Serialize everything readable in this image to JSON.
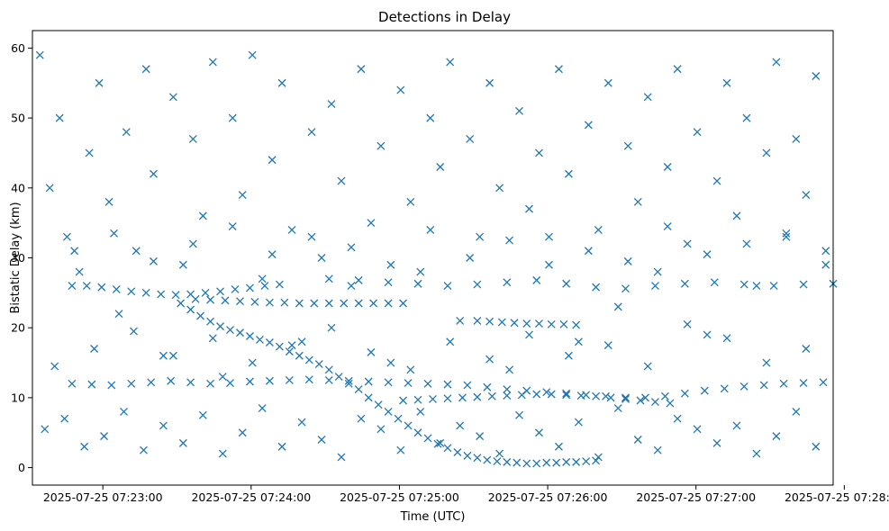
{
  "chart_data": {
    "type": "scatter",
    "title": "Detections in Delay",
    "xlabel": "Time (UTC)",
    "ylabel": "Bistatic Delay (km)",
    "x_unit": "seconds after 2025-07-25 07:22:30 UTC",
    "xlim": [
      0,
      324
    ],
    "ylim": [
      -2.5,
      62.5
    ],
    "x_ticks": [
      {
        "value": 28.5,
        "label": "2025-07-25 07:23:00"
      },
      {
        "value": 88.5,
        "label": "2025-07-25 07:24:00"
      },
      {
        "value": 148.5,
        "label": "2025-07-25 07:25:00"
      },
      {
        "value": 208.5,
        "label": "2025-07-25 07:26:00"
      },
      {
        "value": 268.5,
        "label": "2025-07-25 07:27:00"
      },
      {
        "value": 328.5,
        "label": "2025-07-25 07:28:00"
      }
    ],
    "y_ticks": [
      {
        "value": 0,
        "label": "0"
      },
      {
        "value": 10,
        "label": "10"
      },
      {
        "value": 20,
        "label": "20"
      },
      {
        "value": 30,
        "label": "30"
      },
      {
        "value": 40,
        "label": "40"
      },
      {
        "value": 50,
        "label": "50"
      },
      {
        "value": 60,
        "label": "60"
      }
    ],
    "grid": false,
    "color": "#1f77b4",
    "marker": "x",
    "series": [
      {
        "name": "track: descending curve",
        "x": [
          60,
          64,
          68,
          72,
          76,
          80,
          84,
          88,
          92,
          96,
          100,
          104,
          108,
          112,
          116,
          120,
          124,
          128,
          132,
          136,
          140,
          144,
          148,
          152,
          156,
          160,
          164,
          168,
          172,
          176,
          180,
          184,
          188,
          192,
          196,
          200,
          204,
          208,
          212,
          216,
          220,
          224,
          228
        ],
        "y": [
          23.5,
          22.6,
          21.7,
          20.9,
          20.2,
          19.7,
          19.3,
          18.8,
          18.3,
          17.9,
          17.3,
          16.6,
          16.0,
          15.4,
          14.8,
          14.0,
          13.0,
          12.0,
          11.2,
          10.0,
          9.0,
          8.0,
          7.0,
          6.0,
          5.0,
          4.2,
          3.4,
          2.8,
          2.2,
          1.7,
          1.4,
          1.1,
          0.9,
          0.8,
          0.7,
          0.6,
          0.6,
          0.7,
          0.7,
          0.8,
          0.8,
          0.9,
          1.0
        ]
      },
      {
        "name": "track: 23.5 km band",
        "x": [
          66,
          72,
          78,
          84,
          90,
          96,
          102,
          108,
          114,
          120,
          126,
          132,
          138,
          144,
          150
        ],
        "y": [
          24.1,
          24.0,
          23.9,
          23.8,
          23.7,
          23.6,
          23.6,
          23.5,
          23.5,
          23.5,
          23.5,
          23.5,
          23.5,
          23.5,
          23.5
        ]
      },
      {
        "name": "track: 26 km band",
        "x": [
          16,
          22,
          28,
          34,
          40,
          46,
          52,
          58,
          64,
          70,
          76,
          82,
          88,
          94,
          100,
          120,
          132,
          144,
          156,
          168,
          180,
          192,
          204,
          216,
          228,
          240,
          252,
          264,
          276,
          288,
          300,
          312,
          324
        ],
        "y": [
          26.0,
          26.0,
          25.8,
          25.5,
          25.2,
          25.0,
          24.8,
          24.7,
          24.8,
          25.0,
          25.2,
          25.5,
          25.7,
          26.0,
          26.2,
          27.0,
          26.8,
          26.5,
          26.3,
          26.0,
          26.2,
          26.5,
          26.8,
          26.3,
          25.8,
          25.6,
          26.0,
          26.3,
          26.5,
          26.2,
          26.0,
          26.2,
          26.3
        ]
      },
      {
        "name": "track: 21 km band",
        "x": [
          180,
          185,
          190,
          195,
          200,
          205,
          210,
          215,
          220
        ],
        "y": [
          21.0,
          20.9,
          20.8,
          20.7,
          20.6,
          20.6,
          20.5,
          20.5,
          20.4
        ]
      },
      {
        "name": "track: 12 km band",
        "x": [
          16,
          24,
          32,
          40,
          48,
          56,
          64,
          72,
          80,
          88,
          96,
          104,
          112,
          120,
          128,
          136,
          144,
          152,
          160,
          168,
          176,
          184,
          192,
          200,
          208,
          216,
          224,
          232,
          240,
          248,
          256,
          264,
          272,
          280,
          288,
          296,
          304,
          312,
          320
        ],
        "y": [
          12.0,
          11.9,
          11.8,
          12.0,
          12.2,
          12.4,
          12.2,
          12.0,
          12.1,
          12.3,
          12.4,
          12.5,
          12.6,
          12.5,
          12.4,
          12.3,
          12.2,
          12.1,
          12.0,
          11.9,
          11.8,
          11.5,
          11.2,
          11.0,
          10.8,
          10.6,
          10.4,
          10.2,
          10.0,
          10.0,
          10.2,
          10.6,
          11.0,
          11.3,
          11.6,
          11.8,
          12.0,
          12.1,
          12.2
        ]
      },
      {
        "name": "track: 10 km band",
        "x": [
          150,
          156,
          162,
          168,
          174,
          180,
          186,
          192,
          198,
          204,
          210,
          216,
          222,
          228,
          234,
          240,
          246,
          252,
          258
        ],
        "y": [
          9.6,
          9.7,
          9.8,
          9.9,
          10.0,
          10.1,
          10.2,
          10.3,
          10.4,
          10.5,
          10.5,
          10.4,
          10.3,
          10.2,
          10.0,
          9.8,
          9.6,
          9.4,
          9.2
        ]
      },
      {
        "name": "scattered detections",
        "x": [
          3,
          7,
          11,
          14,
          19,
          23,
          27,
          31,
          35,
          38,
          42,
          46,
          49,
          53,
          57,
          61,
          65,
          69,
          73,
          77,
          81,
          85,
          89,
          93,
          97,
          101,
          105,
          109,
          113,
          117,
          121,
          125,
          129,
          133,
          137,
          141,
          145,
          149,
          153,
          157,
          161,
          165,
          169,
          173,
          177,
          181,
          185,
          189,
          193,
          197,
          201,
          205,
          209,
          213,
          217,
          221,
          225,
          229,
          233,
          237,
          241,
          245,
          249,
          253,
          257,
          261,
          265,
          269,
          273,
          277,
          281,
          285,
          289,
          293,
          297,
          301,
          305,
          309,
          313,
          317,
          321,
          5,
          13,
          21,
          29,
          37,
          45,
          53,
          61,
          69,
          77,
          85,
          93,
          101,
          109,
          117,
          125,
          133,
          141,
          149,
          157,
          165,
          173,
          181,
          189,
          197,
          205,
          213,
          221,
          229,
          237,
          245,
          253,
          261,
          269,
          277,
          285,
          293,
          301,
          309,
          317,
          9,
          25,
          41,
          57,
          73,
          89,
          105,
          121,
          137,
          153,
          169,
          185,
          201,
          217,
          233,
          249,
          265,
          281,
          297,
          313,
          17,
          33,
          49,
          65,
          81,
          97,
          113,
          129,
          145,
          161,
          177,
          193,
          209,
          225,
          241,
          257,
          273,
          289,
          305,
          321
        ],
        "y": [
          59.0,
          40.0,
          50.0,
          33.0,
          28.0,
          45.0,
          55.0,
          38.0,
          22.0,
          48.0,
          31.0,
          57.0,
          42.0,
          16.0,
          53.0,
          29.0,
          47.0,
          36.0,
          58.0,
          13.0,
          50.0,
          39.0,
          59.0,
          27.0,
          44.0,
          55.0,
          34.0,
          18.0,
          48.0,
          30.0,
          52.0,
          41.0,
          26.0,
          57.0,
          35.0,
          46.0,
          15.0,
          54.0,
          38.0,
          28.0,
          50.0,
          43.0,
          58.0,
          21.0,
          47.0,
          33.0,
          55.0,
          40.0,
          14.0,
          51.0,
          37.0,
          45.0,
          29.0,
          57.0,
          42.0,
          18.0,
          49.0,
          34.0,
          55.0,
          23.0,
          46.0,
          38.0,
          53.0,
          28.0,
          43.0,
          57.0,
          32.0,
          48.0,
          19.0,
          41.0,
          55.0,
          36.0,
          50.0,
          26.0,
          45.0,
          58.0,
          33.0,
          47.0,
          39.0,
          56.0,
          31.0,
          5.5,
          7.0,
          3.0,
          4.5,
          8.0,
          2.5,
          6.0,
          3.5,
          7.5,
          2.0,
          5.0,
          8.5,
          3.0,
          6.5,
          4.0,
          1.5,
          7.0,
          5.5,
          2.5,
          8.0,
          3.5,
          6.0,
          4.5,
          2.0,
          7.5,
          5.0,
          3.0,
          6.5,
          1.5,
          8.5,
          4.0,
          2.5,
          7.0,
          5.5,
          3.5,
          6.0,
          2.0,
          4.5,
          8.0,
          3.0,
          14.5,
          17.0,
          19.5,
          16.0,
          18.5,
          15.0,
          17.5,
          20.0,
          16.5,
          14.0,
          18.0,
          15.5,
          19.0,
          16.0,
          17.5,
          14.5,
          20.5,
          18.5,
          15.0,
          17.0,
          31.0,
          33.5,
          29.5,
          32.0,
          34.5,
          30.5,
          33.0,
          31.5,
          29.0,
          34.0,
          30.0,
          32.5,
          33.0,
          31.0,
          29.5,
          34.5,
          30.5,
          32.0,
          33.5,
          29.0
        ]
      }
    ]
  }
}
